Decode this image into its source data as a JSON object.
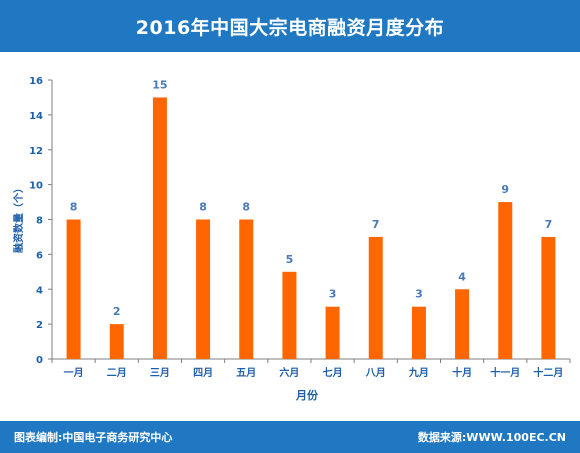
{
  "header": {
    "title": "2016年中国大宗电商融资月度分布"
  },
  "footer": {
    "left_text": "图表编制:中国电子商务研究中心",
    "right_text": "数据来源:WWW.100EC.CN"
  },
  "colors": {
    "header_bg": "#1f78c1",
    "bar": "#ff6600",
    "axis_label": "#1f5fa8",
    "data_label": "#4a7ab8"
  },
  "chart_data": {
    "type": "bar",
    "title": "2016年中国大宗电商融资月度分布",
    "xlabel": "月份",
    "ylabel": "融资数量（个）",
    "categories": [
      "一月",
      "二月",
      "三月",
      "四月",
      "五月",
      "六月",
      "七月",
      "八月",
      "九月",
      "十月",
      "十一月",
      "十二月"
    ],
    "values": [
      8,
      2,
      15,
      8,
      8,
      5,
      3,
      7,
      3,
      4,
      9,
      7
    ],
    "ylim": [
      0,
      16
    ],
    "yticks": [
      0,
      2,
      4,
      6,
      8,
      10,
      12,
      14,
      16
    ],
    "grid": false,
    "legend": "none"
  }
}
